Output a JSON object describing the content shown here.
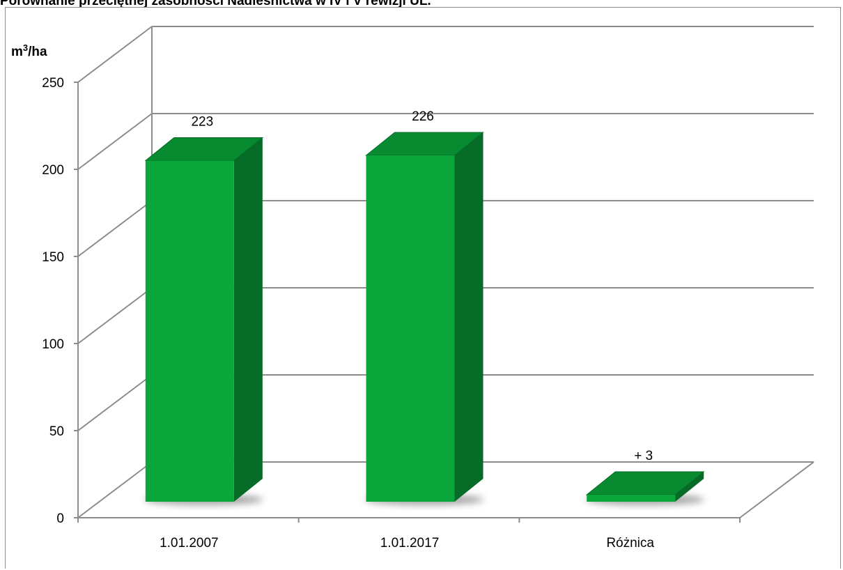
{
  "chart_title": "Porównanie przeciętnej zasobności Nadleśnictwa w IV i V rewizji UL.",
  "chart_data": {
    "type": "bar",
    "title": "Porównanie przeciętnej zasobności Nadleśnictwa w IV i V rewizji UL.",
    "ylabel": "m³/ha",
    "categories": [
      "1.01.2007",
      "1.01.2017",
      "Różnica"
    ],
    "values": [
      223,
      226,
      3
    ],
    "data_labels": [
      "223",
      "226",
      "+ 3"
    ],
    "ylim": [
      0,
      250
    ],
    "yticks": [
      0,
      50,
      100,
      150,
      200,
      250
    ],
    "grid": true,
    "legend": "none",
    "colors": {
      "bar_front": "#0aa63b",
      "bar_side": "#056b26",
      "bar_top": "#088a31",
      "grid": "#8c8c8c"
    }
  }
}
